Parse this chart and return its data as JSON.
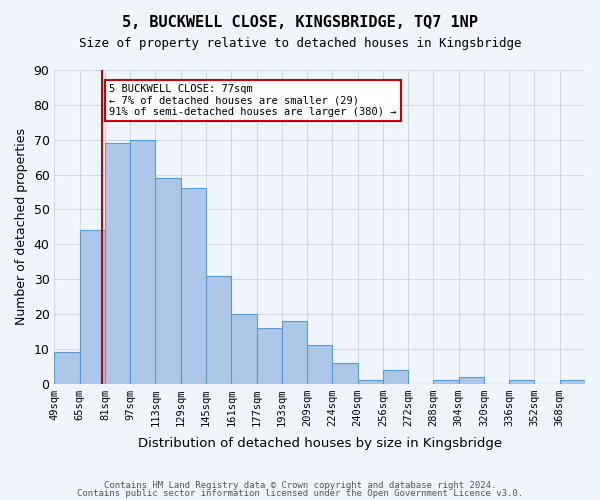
{
  "title": "5, BUCKWELL CLOSE, KINGSBRIDGE, TQ7 1NP",
  "subtitle": "Size of property relative to detached houses in Kingsbridge",
  "xlabel": "Distribution of detached houses by size in Kingsbridge",
  "ylabel": "Number of detached properties",
  "footer_lines": [
    "Contains HM Land Registry data © Crown copyright and database right 2024.",
    "Contains public sector information licensed under the Open Government Licence v3.0."
  ],
  "bin_labels": [
    "49sqm",
    "65sqm",
    "81sqm",
    "97sqm",
    "113sqm",
    "129sqm",
    "145sqm",
    "161sqm",
    "177sqm",
    "193sqm",
    "209sqm",
    "224sqm",
    "240sqm",
    "256sqm",
    "272sqm",
    "288sqm",
    "304sqm",
    "320sqm",
    "336sqm",
    "352sqm",
    "368sqm"
  ],
  "bar_heights": [
    9,
    44,
    69,
    70,
    59,
    56,
    31,
    20,
    16,
    18,
    11,
    6,
    1,
    4,
    0,
    1,
    2,
    0,
    1,
    0,
    1
  ],
  "bar_color": "#aec6e8",
  "bar_edge_color": "#5b9bd5",
  "marker_value": "77sqm",
  "marker_bin_index": 1.875,
  "marker_color": "#cc0000",
  "annotation_text": "5 BUCKWELL CLOSE: 77sqm\n← 7% of detached houses are smaller (29)\n91% of semi-detached houses are larger (380) →",
  "annotation_box_color": "#ffffff",
  "annotation_box_edge": "#cc0000",
  "ylim": [
    0,
    90
  ],
  "yticks": [
    0,
    10,
    20,
    30,
    40,
    50,
    60,
    70,
    80,
    90
  ],
  "grid_color": "#d0d8e8",
  "background_color": "#f0f4fc"
}
